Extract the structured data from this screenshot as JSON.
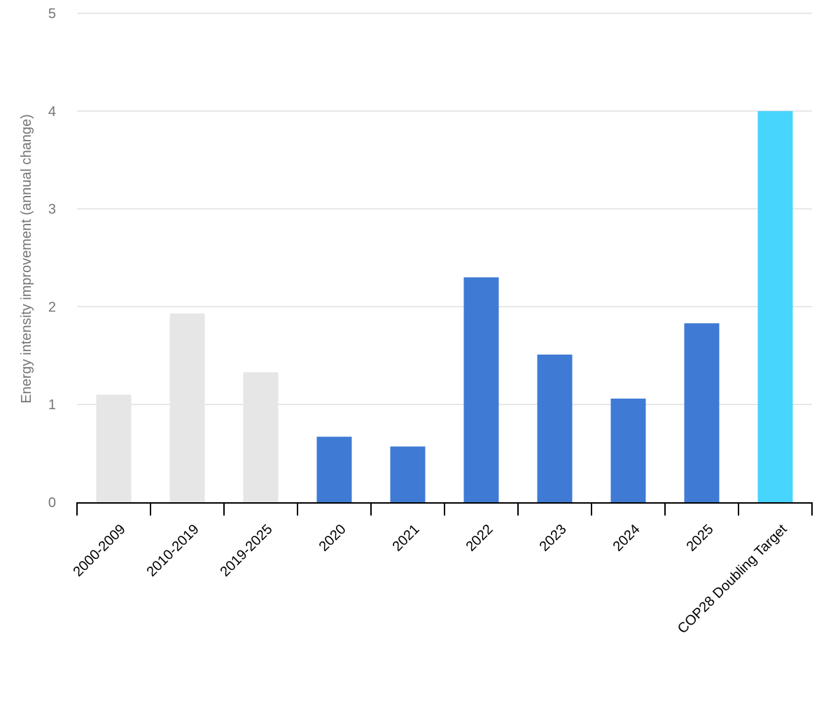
{
  "chart_data": {
    "type": "bar",
    "title": "",
    "xlabel": "",
    "ylabel": "Energy intensity improvement (annual change)",
    "ylim": [
      0,
      5
    ],
    "yticks": [
      0,
      1,
      2,
      3,
      4,
      5
    ],
    "grid": true,
    "legend": "none",
    "categories": [
      "2000-2009",
      "2010-2019",
      "2019-2025",
      "2020",
      "2021",
      "2022",
      "2023",
      "2024",
      "2025",
      "COP28 Doubling Target"
    ],
    "values": [
      1.1,
      1.93,
      1.33,
      0.67,
      0.57,
      2.3,
      1.51,
      1.06,
      1.83,
      4.0
    ],
    "bar_groups": [
      "historical",
      "historical",
      "historical",
      "annual",
      "annual",
      "annual",
      "annual",
      "annual",
      "annual",
      "target"
    ],
    "colors": {
      "historical": "#e6e6e6",
      "annual": "#3f7ad4",
      "target": "#47d4fd"
    }
  }
}
